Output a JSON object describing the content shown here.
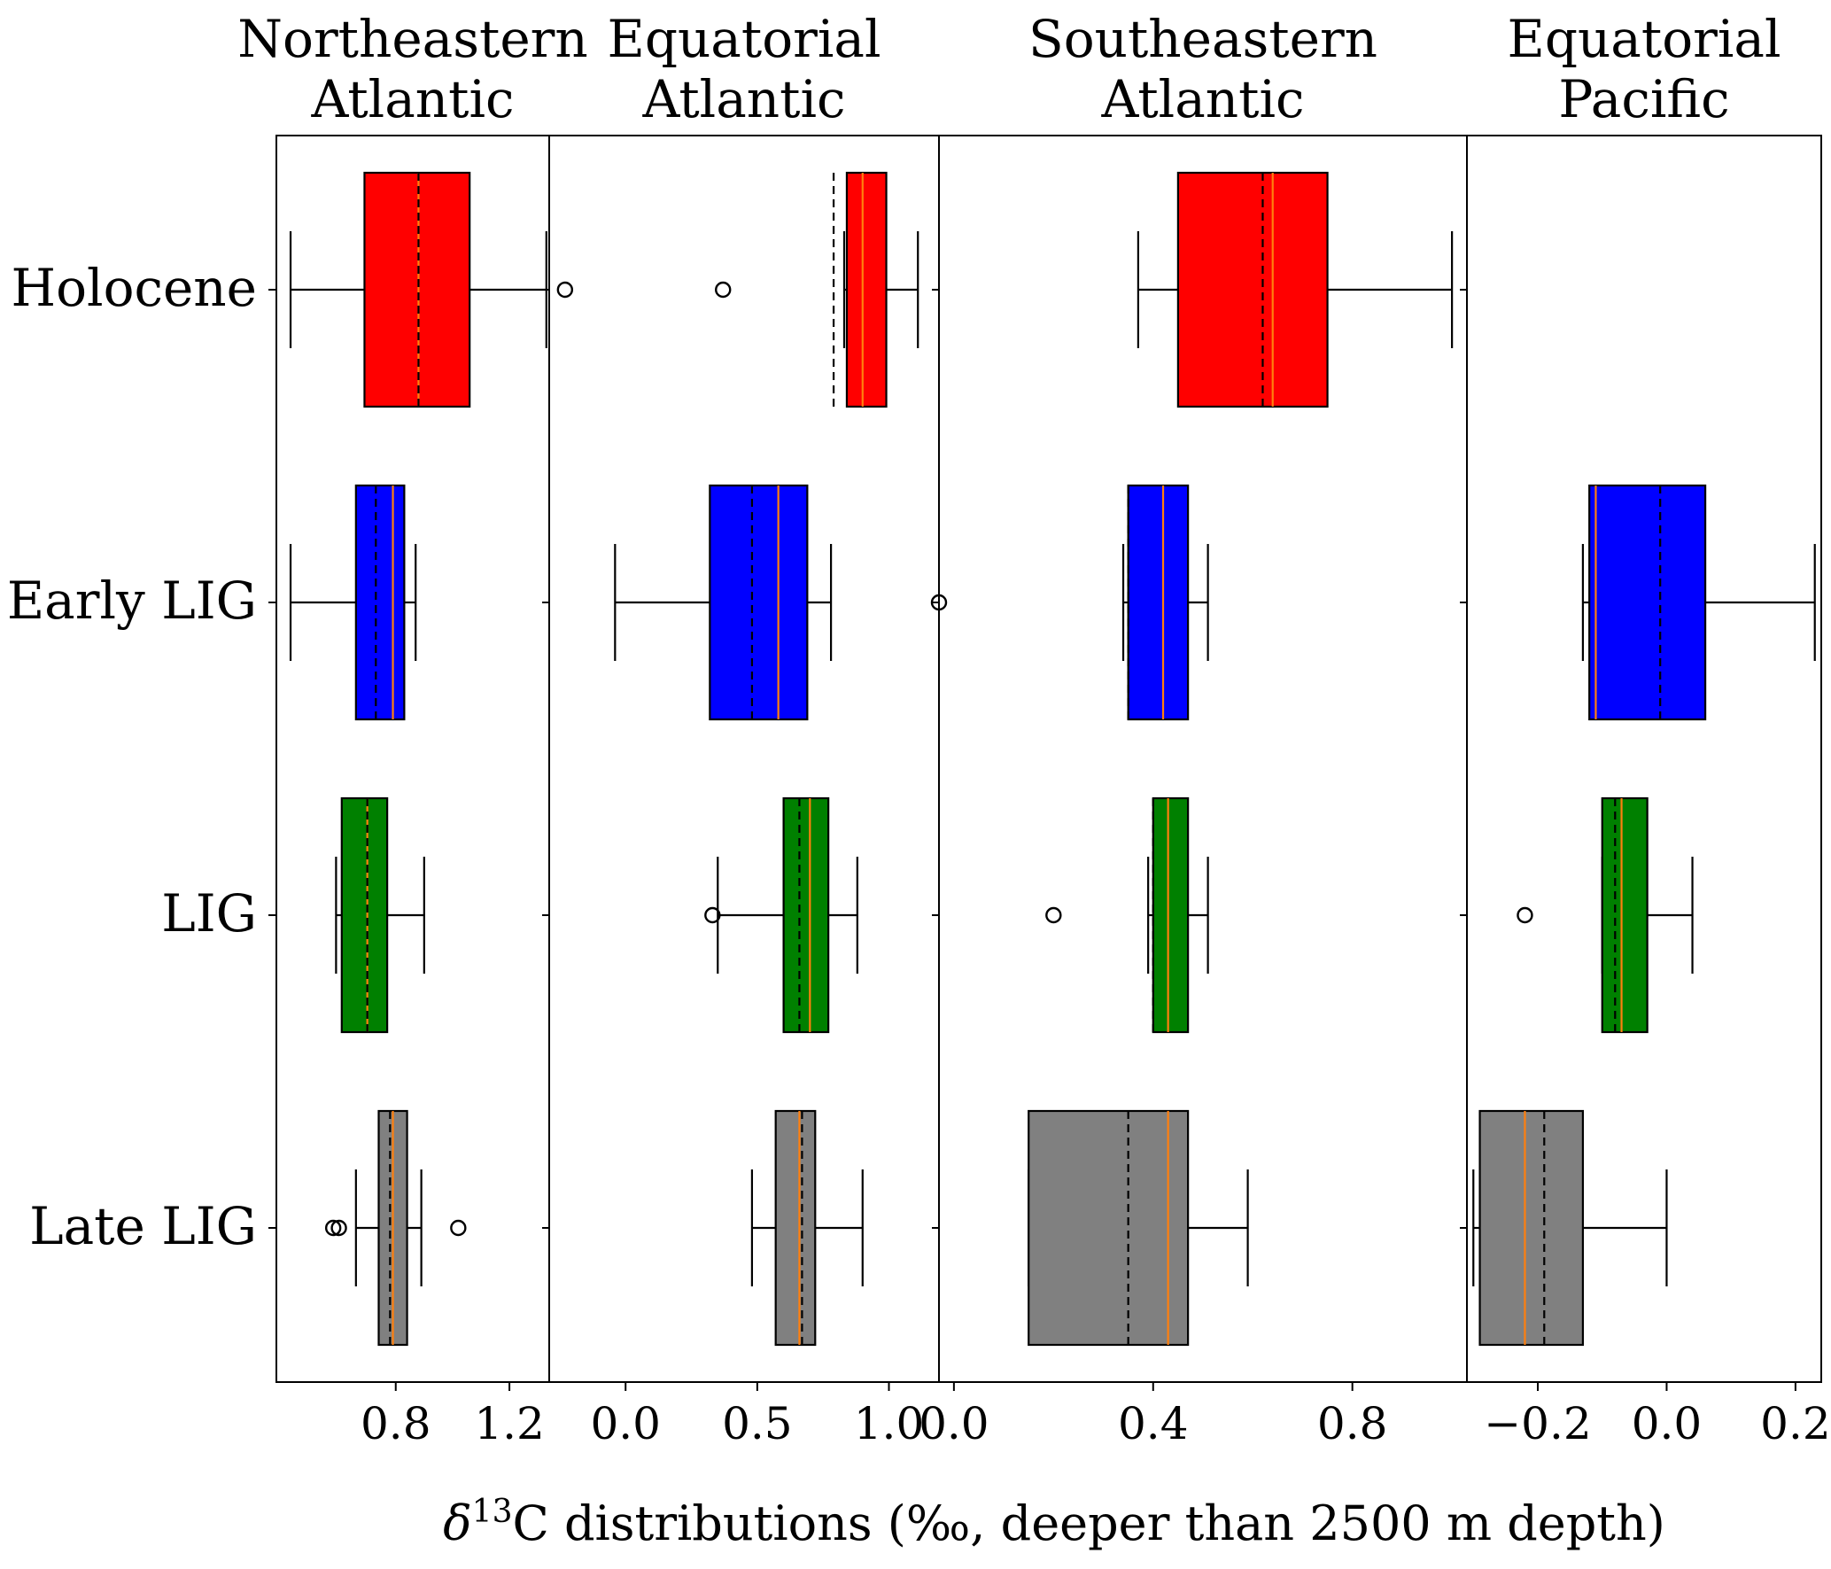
{
  "chart_data": {
    "type": "boxplot",
    "xlabel": "δ13C distributions (‰, deeper than 2500 m depth)",
    "categories": [
      "Holocene",
      "Early LIG",
      "LIG",
      "Late LIG"
    ],
    "legend_notes": {
      "solid_orange_line": "median",
      "dashed_black_line": "mean"
    },
    "colors": {
      "Holocene": "#ff0000",
      "Early LIG": "#0000ff",
      "LIG": "#008000",
      "Late LIG": "#808080",
      "median": "#ff7f0e",
      "mean": "#000000"
    },
    "panels": [
      {
        "title": [
          "Northeastern",
          "Atlantic"
        ],
        "xlim": [
          0.38,
          1.34
        ],
        "ticks": [
          0.8,
          1.2
        ],
        "tick_labels": [
          "0.8",
          "1.2"
        ],
        "boxes": {
          "Holocene": {
            "whislo": 0.43,
            "q1": 0.69,
            "med": 0.88,
            "mean": 0.88,
            "q3": 1.06,
            "whishi": 1.33,
            "fliers": []
          },
          "Early LIG": {
            "whislo": 0.43,
            "q1": 0.66,
            "med": 0.79,
            "mean": 0.73,
            "q3": 0.83,
            "whishi": 0.87,
            "fliers": []
          },
          "LIG": {
            "whislo": 0.59,
            "q1": 0.61,
            "med": 0.7,
            "mean": 0.7,
            "q3": 0.77,
            "whishi": 0.9,
            "fliers": []
          },
          "Late LIG": {
            "whislo": 0.66,
            "q1": 0.74,
            "med": 0.79,
            "mean": 0.78,
            "q3": 0.84,
            "whishi": 0.89,
            "fliers": [
              0.58,
              0.6,
              1.02
            ]
          }
        }
      },
      {
        "title": [
          "Equatorial",
          "Atlantic"
        ],
        "xlim": [
          -0.29,
          1.19
        ],
        "ticks": [
          0.0,
          0.5,
          1.0
        ],
        "tick_labels": [
          "0.0",
          "0.5",
          "1.0"
        ],
        "boxes": {
          "Holocene": {
            "whislo": 0.83,
            "q1": 0.84,
            "med": 0.9,
            "mean": 0.79,
            "q3": 0.99,
            "whishi": 1.11,
            "fliers": [
              -0.23,
              0.37
            ]
          },
          "Early LIG": {
            "whislo": -0.04,
            "q1": 0.32,
            "med": 0.58,
            "mean": 0.48,
            "q3": 0.69,
            "whishi": 0.78,
            "fliers": []
          },
          "LIG": {
            "whislo": 0.35,
            "q1": 0.6,
            "med": 0.7,
            "mean": 0.66,
            "q3": 0.77,
            "whishi": 0.88,
            "fliers": [
              0.33
            ]
          },
          "Late LIG": {
            "whislo": 0.48,
            "q1": 0.57,
            "med": 0.66,
            "mean": 0.67,
            "q3": 0.72,
            "whishi": 0.9,
            "fliers": []
          }
        }
      },
      {
        "title": [
          "Southeastern",
          "Atlantic"
        ],
        "xlim": [
          -0.03,
          1.03
        ],
        "ticks": [
          0.0,
          0.4,
          0.8
        ],
        "tick_labels": [
          "0.0",
          "0.4",
          "0.8"
        ],
        "boxes": {
          "Holocene": {
            "whislo": 0.37,
            "q1": 0.45,
            "med": 0.64,
            "mean": 0.62,
            "q3": 0.75,
            "whishi": 1.0,
            "fliers": []
          },
          "Early LIG": {
            "whislo": 0.34,
            "q1": 0.35,
            "med": 0.42,
            "mean": 0.35,
            "q3": 0.47,
            "whishi": 0.51,
            "fliers": [
              -0.03
            ]
          },
          "LIG": {
            "whislo": 0.39,
            "q1": 0.4,
            "med": 0.43,
            "mean": 0.4,
            "q3": 0.47,
            "whishi": 0.51,
            "fliers": [
              0.2
            ]
          },
          "Late LIG": {
            "whislo": 0.15,
            "q1": 0.15,
            "med": 0.43,
            "mean": 0.35,
            "q3": 0.47,
            "whishi": 0.59,
            "fliers": []
          }
        }
      },
      {
        "title": [
          "Equatorial",
          "Pacific"
        ],
        "xlim": [
          -0.31,
          0.24
        ],
        "ticks": [
          -0.2,
          0.0,
          0.2
        ],
        "tick_labels": [
          "−0.2",
          "0.0",
          "0.2"
        ],
        "boxes": {
          "Early LIG": {
            "whislo": -0.13,
            "q1": -0.12,
            "med": -0.11,
            "mean": -0.01,
            "q3": 0.06,
            "whishi": 0.23,
            "fliers": []
          },
          "LIG": {
            "whislo": -0.1,
            "q1": -0.1,
            "med": -0.07,
            "mean": -0.08,
            "q3": -0.03,
            "whishi": 0.04,
            "fliers": [
              -0.22
            ]
          },
          "Late LIG": {
            "whislo": -0.3,
            "q1": -0.29,
            "med": -0.22,
            "mean": -0.19,
            "q3": -0.13,
            "whishi": 0.0,
            "fliers": []
          }
        }
      }
    ]
  }
}
